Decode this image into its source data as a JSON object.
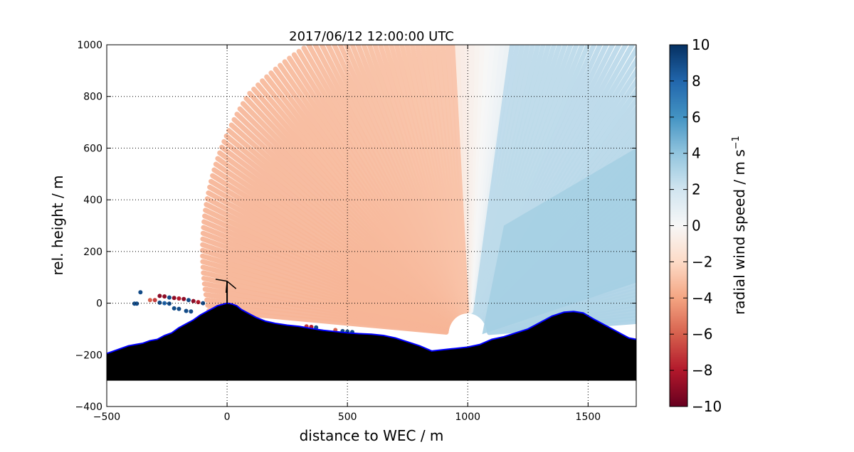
{
  "chart_data": {
    "type": "scatter",
    "title": "2017/06/12 12:00:00 UTC",
    "xlabel": "distance to WEC / m",
    "ylabel": "rel. height / m",
    "xlim": [
      -500,
      1700
    ],
    "ylim": [
      -400,
      1000
    ],
    "xticks": [
      -500,
      0,
      500,
      1000,
      1500
    ],
    "yticks": [
      -400,
      -200,
      0,
      200,
      400,
      600,
      800,
      1000
    ],
    "xtick_labels": [
      "−500",
      "0",
      "500",
      "1000",
      "1500"
    ],
    "ytick_labels": [
      "−400",
      "−200",
      "0",
      "200",
      "400",
      "600",
      "800",
      "1000"
    ],
    "grid": true,
    "scan_origin": [
      1000,
      -120
    ],
    "colorbar": {
      "label": "radial wind speed / m s",
      "label_exponent": "−1",
      "range": [
        -10,
        10
      ],
      "ticks": [
        -10,
        -8,
        -6,
        -4,
        -2,
        0,
        2,
        4,
        6,
        8,
        10
      ],
      "tick_labels": [
        "−10",
        "−8",
        "−6",
        "−4",
        "−2",
        "0",
        "2",
        "4",
        "6",
        "8",
        "10"
      ],
      "colormap": "RdBu",
      "colors": [
        "#67001f",
        "#b2182b",
        "#d6604d",
        "#f4a582",
        "#fddbc7",
        "#f7f7f7",
        "#d1e5f0",
        "#92c5de",
        "#4393c3",
        "#2166ac",
        "#053061"
      ]
    },
    "terrain": {
      "x": [
        -500,
        -470,
        -440,
        -410,
        -380,
        -350,
        -320,
        -290,
        -260,
        -230,
        -200,
        -170,
        -140,
        -110,
        -80,
        -60,
        -40,
        -20,
        0,
        20,
        40,
        60,
        90,
        120,
        160,
        200,
        250,
        300,
        350,
        400,
        450,
        500,
        550,
        600,
        650,
        700,
        750,
        800,
        850,
        900,
        950,
        1000,
        1050,
        1100,
        1150,
        1200,
        1250,
        1300,
        1350,
        1400,
        1440,
        1480,
        1520,
        1560,
        1600,
        1640,
        1670,
        1700
      ],
      "y": [
        -195,
        -185,
        -175,
        -165,
        -160,
        -155,
        -145,
        -140,
        -125,
        -115,
        -95,
        -80,
        -65,
        -45,
        -30,
        -20,
        -10,
        -5,
        0,
        -3,
        -10,
        -25,
        -40,
        -55,
        -70,
        -78,
        -85,
        -90,
        -98,
        -105,
        -110,
        -115,
        -118,
        -120,
        -125,
        -135,
        -150,
        -165,
        -185,
        -180,
        -175,
        -170,
        -160,
        -140,
        -130,
        -115,
        -100,
        -75,
        -50,
        -35,
        -32,
        -38,
        -60,
        -80,
        -100,
        -120,
        -135,
        -140
      ],
      "bottom": -300,
      "outline_color": "#0000ff",
      "fill_color": "#000000"
    },
    "turbine": {
      "x": 0,
      "hub_height": 85,
      "rotor_radius": 45
    },
    "near_field_points": [
      {
        "x": -375,
        "y": -2,
        "v": 9
      },
      {
        "x": -385,
        "y": -2,
        "v": 9
      },
      {
        "x": -360,
        "y": 42,
        "v": 9
      },
      {
        "x": -320,
        "y": 12,
        "v": -6
      },
      {
        "x": -300,
        "y": 12,
        "v": -7
      },
      {
        "x": -280,
        "y": 28,
        "v": -9
      },
      {
        "x": -260,
        "y": 26,
        "v": -9
      },
      {
        "x": -240,
        "y": 22,
        "v": 9
      },
      {
        "x": -220,
        "y": 20,
        "v": -9
      },
      {
        "x": -200,
        "y": 18,
        "v": -8
      },
      {
        "x": -180,
        "y": 16,
        "v": -9
      },
      {
        "x": -160,
        "y": 12,
        "v": 9
      },
      {
        "x": -140,
        "y": 8,
        "v": -9
      },
      {
        "x": -120,
        "y": 4,
        "v": -8
      },
      {
        "x": -100,
        "y": 0,
        "v": 9
      },
      {
        "x": -280,
        "y": 2,
        "v": 9
      },
      {
        "x": -260,
        "y": 0,
        "v": 8
      },
      {
        "x": -240,
        "y": -2,
        "v": 9
      },
      {
        "x": -220,
        "y": -20,
        "v": 9
      },
      {
        "x": -200,
        "y": -22,
        "v": 9
      },
      {
        "x": -170,
        "y": -30,
        "v": 9
      },
      {
        "x": -150,
        "y": -32,
        "v": 9
      },
      {
        "x": 330,
        "y": -90,
        "v": -7
      },
      {
        "x": 350,
        "y": -92,
        "v": -8
      },
      {
        "x": 370,
        "y": -94,
        "v": 9
      },
      {
        "x": 450,
        "y": -104,
        "v": -6
      },
      {
        "x": 480,
        "y": -108,
        "v": 9
      },
      {
        "x": 500,
        "y": -110,
        "v": 9
      },
      {
        "x": 520,
        "y": -112,
        "v": 9
      }
    ]
  }
}
